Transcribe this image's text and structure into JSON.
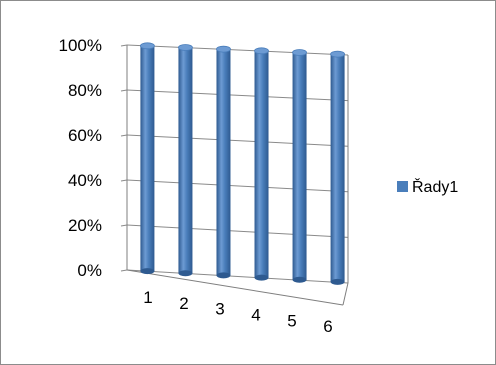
{
  "chart_data": {
    "type": "bar",
    "style": "3d-cylinder",
    "categories": [
      "1",
      "2",
      "3",
      "4",
      "5",
      "6"
    ],
    "series": [
      {
        "name": "Řady1",
        "values": [
          100,
          100,
          100,
          100,
          100,
          100
        ]
      }
    ],
    "ylim": [
      0,
      100
    ],
    "ytick_labels": [
      "0%",
      "20%",
      "40%",
      "60%",
      "80%",
      "100%"
    ],
    "grid": true,
    "legend": "right",
    "colors": {
      "bar": "#4a7ebb",
      "bar_dark": "#2e5a90",
      "bar_light": "#6d9bd3",
      "grid": "#8a8a8a",
      "frame": "#7f7f7f"
    }
  }
}
